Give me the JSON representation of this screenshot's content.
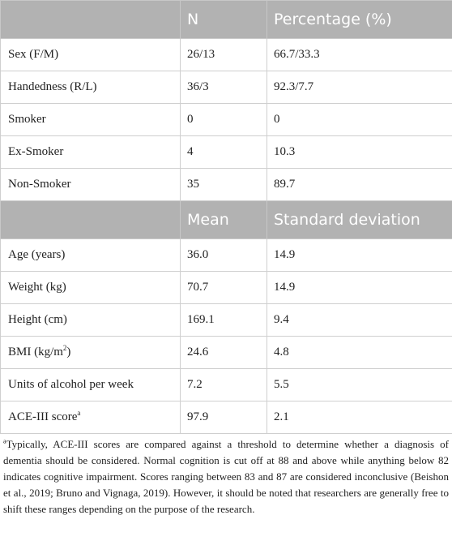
{
  "header1": {
    "col1": "",
    "col2": "N",
    "col3": "Percentage (%)"
  },
  "rows1": [
    {
      "label": "Sex (F/M)",
      "n": "26/13",
      "pct": "66.7/33.3"
    },
    {
      "label": "Handedness (R/L)",
      "n": "36/3",
      "pct": "92.3/7.7"
    },
    {
      "label": "Smoker",
      "n": "0",
      "pct": "0"
    },
    {
      "label": "Ex-Smoker",
      "n": "4",
      "pct": "10.3"
    },
    {
      "label": "Non-Smoker",
      "n": "35",
      "pct": "89.7"
    }
  ],
  "header2": {
    "col1": "",
    "col2": "Mean",
    "col3": "Standard deviation"
  },
  "rows2": [
    {
      "label": "Age (years)",
      "mean": "36.0",
      "sd": "14.9"
    },
    {
      "label": "Weight (kg)",
      "mean": "70.7",
      "sd": "14.9"
    },
    {
      "label": "Height (cm)",
      "mean": "169.1",
      "sd": "9.4"
    },
    {
      "label": "BMI (kg/m",
      "label_sup": "2",
      "label_after": ")",
      "mean": "24.6",
      "sd": "4.8"
    },
    {
      "label": "Units of alcohol per week",
      "mean": "7.2",
      "sd": "5.5"
    },
    {
      "label": "ACE-III score",
      "label_sup": "a",
      "mean": "97.9",
      "sd": "2.1"
    }
  ],
  "footnote": {
    "marker": "a",
    "text": "Typically, ACE-III scores are compared against a threshold to determine whether a diagnosis of dementia should be considered. Normal cognition is cut off at 88 and above while anything below 82 indicates cognitive impairment. Scores ranging between 83 and 87 are considered inconclusive (Beishon et al., 2019; Bruno and Vignaga, 2019). However, it should be noted that researchers are generally free to shift these ranges depending on the purpose of the research."
  }
}
